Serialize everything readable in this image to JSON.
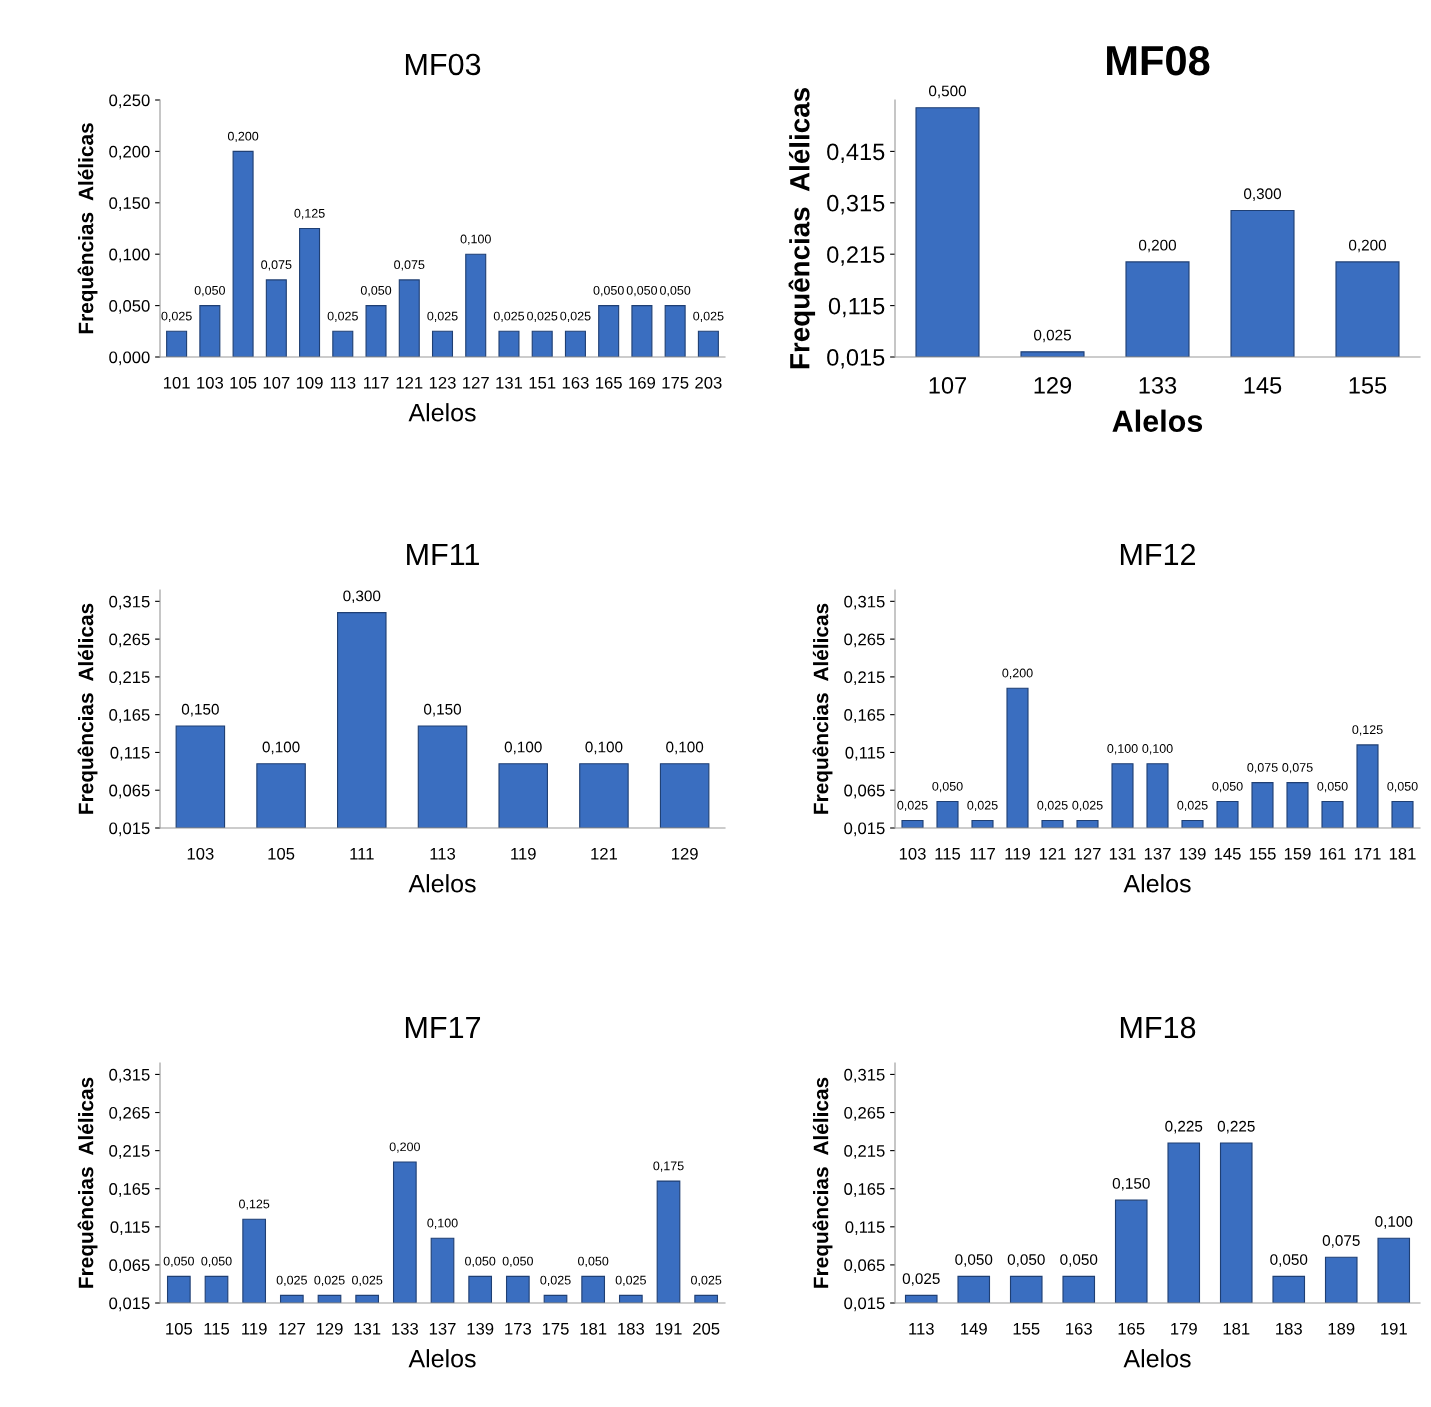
{
  "chart_data": [
    {
      "type": "bar",
      "title": "MF03",
      "xlabel": "Alelos",
      "ylabel": "Frequências  Alélicas",
      "categories": [
        "101",
        "103",
        "105",
        "107",
        "109",
        "113",
        "117",
        "121",
        "123",
        "127",
        "131",
        "151",
        "163",
        "165",
        "169",
        "175",
        "203"
      ],
      "values": [
        0.025,
        0.05,
        0.2,
        0.075,
        0.125,
        0.025,
        0.05,
        0.075,
        0.025,
        0.1,
        0.025,
        0.025,
        0.025,
        0.05,
        0.05,
        0.05,
        0.025
      ],
      "value_labels": [
        "0,025",
        "0,050",
        "0,200",
        "0,075",
        "0,125",
        "0,025",
        "0,050",
        "0,075",
        "0,025",
        "0,100",
        "0,025",
        "0,025",
        "0,025",
        "0,050",
        "0,050",
        "0,050",
        "0,025"
      ],
      "color": "#3a6ec0",
      "ylim": [
        0,
        0.25
      ],
      "yticks": [
        {
          "value": 0,
          "label": "0,000"
        },
        {
          "value": 0.05,
          "label": "0,050"
        },
        {
          "value": 0.1,
          "label": "0,100"
        },
        {
          "value": 0.15,
          "label": "0,150"
        },
        {
          "value": 0.2,
          "label": "0,200"
        },
        {
          "value": 0.25,
          "label": "0,250"
        }
      ],
      "grid": false,
      "legend": false
    },
    {
      "type": "bar",
      "title": "MF08",
      "xlabel": "Alelos",
      "ylabel": "Frequências  Alélicas",
      "categories": [
        "107",
        "129",
        "133",
        "145",
        "155"
      ],
      "values": [
        0.5,
        0.025,
        0.2,
        0.3,
        0.2
      ],
      "value_labels": [
        "0,500",
        "0,025",
        "0,200",
        "0,300",
        "0,200"
      ],
      "color": "#3a6ec0",
      "ylim": [
        0.015,
        0.515
      ],
      "yticks": [
        {
          "value": 0.015,
          "label": "0,015"
        },
        {
          "value": 0.115,
          "label": "0,115"
        },
        {
          "value": 0.215,
          "label": "0,215"
        },
        {
          "value": 0.315,
          "label": "0,315"
        },
        {
          "value": 0.415,
          "label": "0,415"
        }
      ],
      "grid": false,
      "legend": false
    },
    {
      "type": "bar",
      "title": "MF11",
      "xlabel": "Alelos",
      "ylabel": "Frequências  Alélicas",
      "categories": [
        "103",
        "105",
        "111",
        "113",
        "119",
        "121",
        "129"
      ],
      "values": [
        0.15,
        0.1,
        0.3,
        0.15,
        0.1,
        0.1,
        0.1
      ],
      "value_labels": [
        "0,150",
        "0,100",
        "0,300",
        "0,150",
        "0,100",
        "0,100",
        "0,100"
      ],
      "color": "#3a6ec0",
      "ylim": [
        0.015,
        0.33
      ],
      "yticks": [
        {
          "value": 0.015,
          "label": "0,015"
        },
        {
          "value": 0.065,
          "label": "0,065"
        },
        {
          "value": 0.115,
          "label": "0,115"
        },
        {
          "value": 0.165,
          "label": "0,165"
        },
        {
          "value": 0.215,
          "label": "0,215"
        },
        {
          "value": 0.265,
          "label": "0,265"
        },
        {
          "value": 0.315,
          "label": "0,315"
        }
      ],
      "grid": false,
      "legend": false
    },
    {
      "type": "bar",
      "title": "MF12",
      "xlabel": "Alelos",
      "ylabel": "Frequências  Alélicas",
      "categories": [
        "103",
        "115",
        "117",
        "119",
        "121",
        "127",
        "131",
        "137",
        "139",
        "145",
        "155",
        "159",
        "161",
        "171",
        "181"
      ],
      "values": [
        0.025,
        0.05,
        0.025,
        0.2,
        0.025,
        0.025,
        0.1,
        0.1,
        0.025,
        0.05,
        0.075,
        0.075,
        0.05,
        0.125,
        0.05
      ],
      "value_labels": [
        "0,025",
        "0,050",
        "0,025",
        "0,200",
        "0,025",
        "0,025",
        "0,100",
        "0,100",
        "0,025",
        "0,050",
        "0,075",
        "0,075",
        "0,050",
        "0,125",
        "0,050"
      ],
      "color": "#3a6ec0",
      "ylim": [
        0.015,
        0.33
      ],
      "yticks": [
        {
          "value": 0.015,
          "label": "0,015"
        },
        {
          "value": 0.065,
          "label": "0,065"
        },
        {
          "value": 0.115,
          "label": "0,115"
        },
        {
          "value": 0.165,
          "label": "0,165"
        },
        {
          "value": 0.215,
          "label": "0,215"
        },
        {
          "value": 0.265,
          "label": "0,265"
        },
        {
          "value": 0.315,
          "label": "0,315"
        }
      ],
      "grid": false,
      "legend": false
    },
    {
      "type": "bar",
      "title": "MF17",
      "xlabel": "Alelos",
      "ylabel": "Frequências  Alélicas",
      "categories": [
        "105",
        "115",
        "119",
        "127",
        "129",
        "131",
        "133",
        "137",
        "139",
        "173",
        "175",
        "181",
        "183",
        "191",
        "205"
      ],
      "values": [
        0.05,
        0.05,
        0.125,
        0.025,
        0.025,
        0.025,
        0.2,
        0.1,
        0.05,
        0.05,
        0.025,
        0.05,
        0.025,
        0.175,
        0.025
      ],
      "value_labels": [
        "0,050",
        "0,050",
        "0,125",
        "0,025",
        "0,025",
        "0,025",
        "0,200",
        "0,100",
        "0,050",
        "0,050",
        "0,025",
        "0,050",
        "0,025",
        "0,175",
        "0,025"
      ],
      "color": "#3a6ec0",
      "ylim": [
        0.015,
        0.33
      ],
      "yticks": [
        {
          "value": 0.015,
          "label": "0,015"
        },
        {
          "value": 0.065,
          "label": "0,065"
        },
        {
          "value": 0.115,
          "label": "0,115"
        },
        {
          "value": 0.165,
          "label": "0,165"
        },
        {
          "value": 0.215,
          "label": "0,215"
        },
        {
          "value": 0.265,
          "label": "0,265"
        },
        {
          "value": 0.315,
          "label": "0,315"
        }
      ],
      "grid": false,
      "legend": false
    },
    {
      "type": "bar",
      "title": "MF18",
      "xlabel": "Alelos",
      "ylabel": "Frequências  Alélicas",
      "categories": [
        "113",
        "149",
        "155",
        "163",
        "165",
        "179",
        "181",
        "183",
        "189",
        "191"
      ],
      "values": [
        0.025,
        0.05,
        0.05,
        0.05,
        0.15,
        0.225,
        0.225,
        0.05,
        0.075,
        0.1
      ],
      "value_labels": [
        "0,025",
        "0,050",
        "0,050",
        "0,050",
        "0,150",
        "0,225",
        "0,225",
        "0,050",
        "0,075",
        "0,100"
      ],
      "color": "#3a6ec0",
      "ylim": [
        0.015,
        0.33
      ],
      "yticks": [
        {
          "value": 0.015,
          "label": "0,015"
        },
        {
          "value": 0.065,
          "label": "0,065"
        },
        {
          "value": 0.115,
          "label": "0,115"
        },
        {
          "value": 0.165,
          "label": "0,165"
        },
        {
          "value": 0.215,
          "label": "0,215"
        },
        {
          "value": 0.265,
          "label": "0,265"
        },
        {
          "value": 0.315,
          "label": "0,315"
        }
      ],
      "grid": false,
      "legend": false
    }
  ]
}
